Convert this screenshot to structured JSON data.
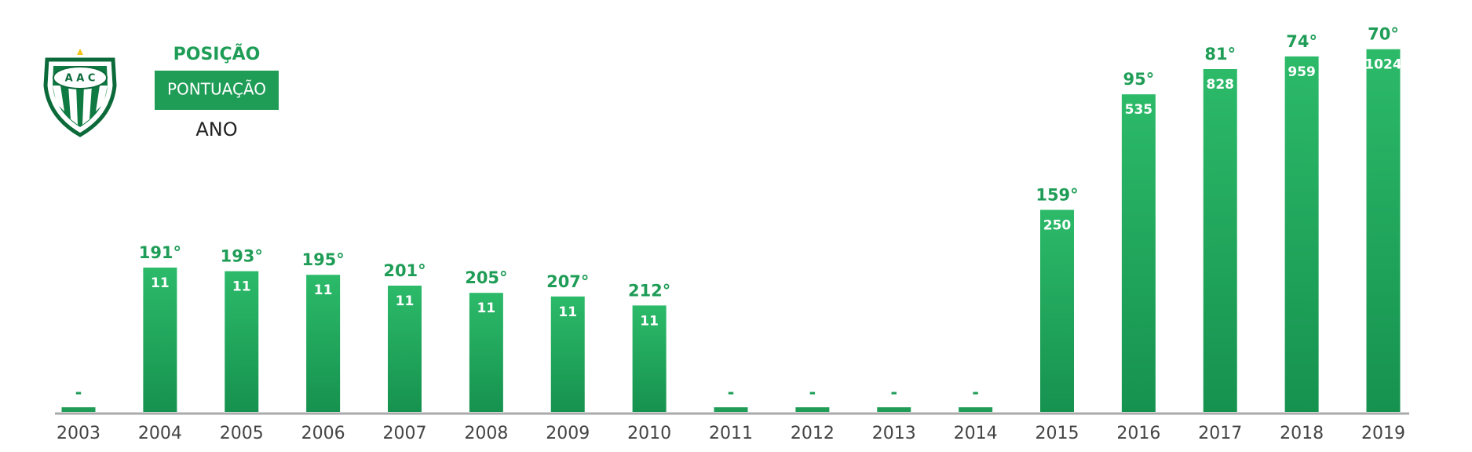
{
  "chart_data": {
    "type": "bar",
    "categories": [
      "2003",
      "2004",
      "2005",
      "2006",
      "2007",
      "2008",
      "2009",
      "2010",
      "2011",
      "2012",
      "2013",
      "2014",
      "2015",
      "2016",
      "2017",
      "2018",
      "2019"
    ],
    "series": [
      {
        "name": "POSIÇÃO",
        "color": "#1f9d57",
        "values": [
          null,
          191,
          193,
          195,
          201,
          205,
          207,
          212,
          null,
          null,
          null,
          null,
          159,
          95,
          81,
          74,
          70
        ],
        "value_labels": [
          "-",
          "191°",
          "193°",
          "195°",
          "201°",
          "205°",
          "207°",
          "212°",
          "-",
          "-",
          "-",
          "-",
          "159°",
          "95°",
          "81°",
          "74°",
          "70°"
        ]
      },
      {
        "name": "PONTUAÇÃO",
        "color": "#ffffff",
        "values": [
          null,
          11,
          11,
          11,
          11,
          11,
          11,
          11,
          null,
          null,
          null,
          null,
          250,
          535,
          828,
          959,
          1024
        ]
      }
    ],
    "x_label": "ANO"
  }
}
